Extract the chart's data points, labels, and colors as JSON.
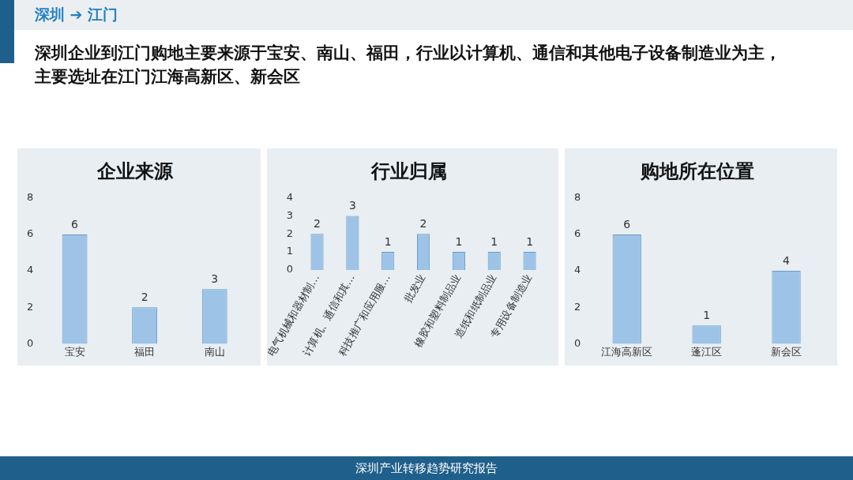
{
  "chart_data": [
    {
      "type": "other",
      "title": "深圳 ➔ 江门",
      "subtitle": "深圳企业到江门购地主要来源于宝安、南山、福田，行业以计算机、通信和其他电子设备制造业为主，主要选址在江门江海高新区、新会区",
      "annotations": [
        "深圳产业转移趋势研究报告"
      ]
    },
    {
      "type": "bar",
      "title": "企业来源",
      "categories": [
        "宝安",
        "福田",
        "南山"
      ],
      "values": [
        6,
        2,
        3
      ],
      "color": "#9dc3e6",
      "ylim": [
        0,
        8
      ],
      "yticks": [
        0,
        2,
        4,
        6,
        8
      ],
      "data_labels": true
    },
    {
      "type": "bar",
      "title": "行业归属",
      "categories": [
        "电气机械和器材制…",
        "计算机、通信和其…",
        "科技推广和应用服…",
        "批发业",
        "橡胶和塑料制品业",
        "造纸和纸制品业",
        "专用设备制造业"
      ],
      "values": [
        2,
        3,
        1,
        2,
        1,
        1,
        1
      ],
      "color": "#9dc3e6",
      "ylim": [
        0,
        4
      ],
      "yticks": [
        0,
        1,
        2,
        3,
        4
      ],
      "data_labels": true
    },
    {
      "type": "bar",
      "title": "购地所在位置",
      "categories": [
        "江海高新区",
        "蓬江区",
        "新会区"
      ],
      "values": [
        6,
        1,
        4
      ],
      "color": "#9dc3e6",
      "ylim": [
        0,
        8
      ],
      "yticks": [
        0,
        2,
        4,
        6,
        8
      ],
      "data_labels": true
    }
  ]
}
